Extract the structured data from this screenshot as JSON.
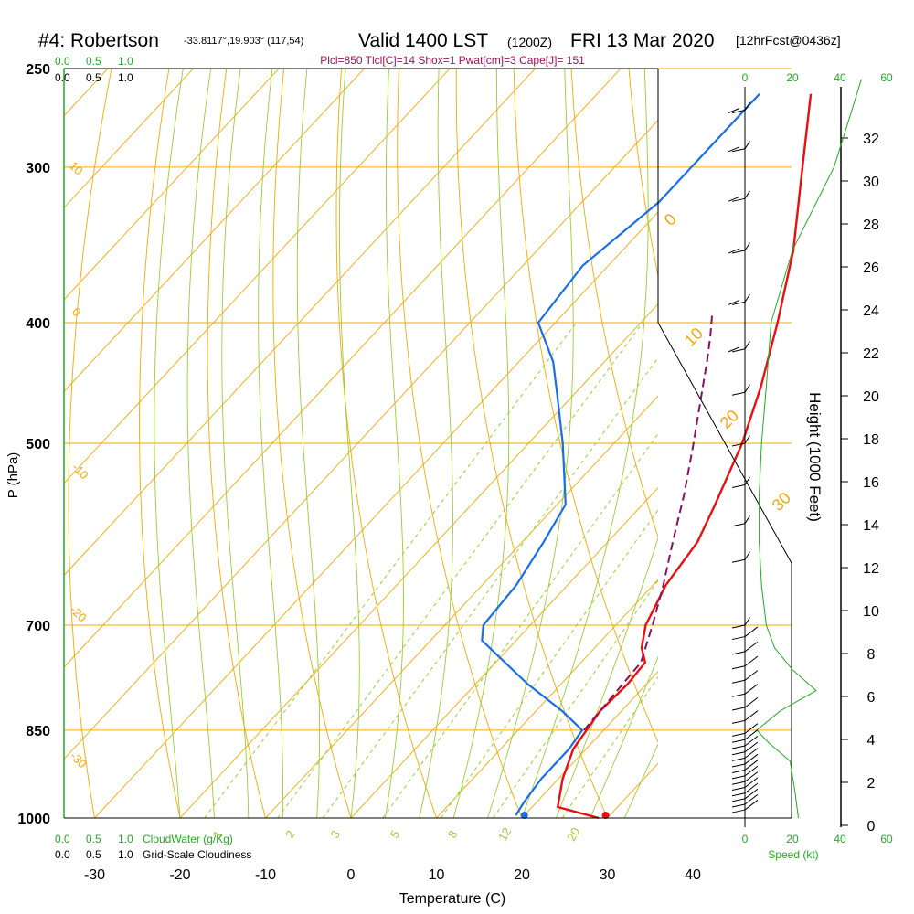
{
  "header": {
    "station": "#4: Robertson",
    "coords": "-33.8117°,19.903° (117,54)",
    "valid": "Valid 1400 LST",
    "zulu": "(1200Z)",
    "date": "FRI 13 Mar 2020",
    "forecast": "[12hrFcst@0436z]",
    "indices": "Plcl=850 Tlcl[C]=14 Shox=1 Pwat[cm]=3 Cape[J]= 151"
  },
  "colors": {
    "isotherm": "#f5a800",
    "mixratio": "#9acd32",
    "temperature": "#e81010",
    "dewpoint": "#1a6ee8",
    "parcel": "#8b1060",
    "indices": "#a0105a",
    "green_label": "#22aa22"
  },
  "chart_data": {
    "type": "line",
    "title": "#4: Robertson Valid 1400 LST (1200Z) FRI 13 Mar 2020",
    "xlabel": "Temperature (C)",
    "ylabel": "P (hPa)",
    "right_axis_label": "Height (1000 Feet)",
    "x_ticks": [
      -30,
      -20,
      -10,
      0,
      10,
      20,
      30,
      40
    ],
    "p_ticks": [
      250,
      300,
      400,
      500,
      700,
      850,
      1000
    ],
    "height_ticks": [
      0,
      2,
      4,
      6,
      8,
      10,
      12,
      14,
      16,
      18,
      20,
      22,
      24,
      26,
      28,
      30,
      32
    ],
    "skew_isotherm_labels": [
      "10",
      "0",
      "-10",
      "-20",
      "-30"
    ],
    "right_isotherm_labels": [
      "0",
      "10",
      "20",
      "30"
    ],
    "mixing_ratio_labels": [
      "1",
      "2",
      "3",
      "5",
      "8",
      "12",
      "20"
    ],
    "wind_speed_ticks": [
      "0",
      "20",
      "40",
      "60"
    ],
    "top_scales": {
      "cloud_water": [
        "0.0",
        "0.5",
        "1.0"
      ],
      "cloudiness": [
        "0.0",
        "0.5",
        "1.0"
      ]
    },
    "bottom_scales": {
      "cloud_water": [
        "0.0",
        "0.5",
        "1.0"
      ],
      "cloud_water_label": "CloudWater (g/Kg)",
      "cloudiness": [
        "0.0",
        "0.5",
        "1.0"
      ],
      "cloudiness_label": "Grid-Scale Cloudiness"
    },
    "speed_ticks": [
      "0",
      "20",
      "40",
      "60"
    ],
    "speed_label": "Speed (kt)",
    "series": [
      {
        "name": "Temperature",
        "points": [
          [
            1000,
            29.0
          ],
          [
            980,
            23.0
          ],
          [
            930,
            20.5
          ],
          [
            880,
            18.5
          ],
          [
            850,
            18.0
          ],
          [
            820,
            17.5
          ],
          [
            780,
            17.8
          ],
          [
            750,
            17.5
          ],
          [
            730,
            15.5
          ],
          [
            700,
            13.5
          ],
          [
            650,
            11.5
          ],
          [
            600,
            10.5
          ],
          [
            560,
            8.5
          ],
          [
            500,
            5.0
          ],
          [
            450,
            1.0
          ],
          [
            400,
            -4.0
          ],
          [
            350,
            -10.0
          ],
          [
            300,
            -18.0
          ],
          [
            262,
            -25.0
          ]
        ]
      },
      {
        "name": "Dewpoint",
        "points": [
          [
            995,
            19.0
          ],
          [
            970,
            18.5
          ],
          [
            930,
            18.0
          ],
          [
            880,
            18.0
          ],
          [
            850,
            17.5
          ],
          [
            820,
            13.0
          ],
          [
            780,
            6.0
          ],
          [
            720,
            -4.0
          ],
          [
            700,
            -5.5
          ],
          [
            650,
            -6.0
          ],
          [
            600,
            -7.5
          ],
          [
            560,
            -9.0
          ],
          [
            500,
            -16.0
          ],
          [
            460,
            -21.5
          ],
          [
            430,
            -26.0
          ],
          [
            400,
            -32.0
          ],
          [
            360,
            -33.0
          ],
          [
            320,
            -31.0
          ],
          [
            290,
            -31.0
          ],
          [
            262,
            -31.0
          ]
        ]
      },
      {
        "name": "Parcel",
        "points": [
          [
            850,
            17.7
          ],
          [
            750,
            17.0
          ],
          [
            700,
            14.3
          ],
          [
            650,
            11.2
          ],
          [
            600,
            7.6
          ],
          [
            550,
            3.8
          ],
          [
            500,
            -0.7
          ],
          [
            450,
            -5.8
          ],
          [
            430,
            -8.0
          ],
          [
            410,
            -10.4
          ],
          [
            395,
            -12.4
          ]
        ]
      }
    ],
    "surface_markers": {
      "temperature": 29.5,
      "dewpoint": 20.0
    },
    "wind_levels_hpa": [
      985,
      975,
      965,
      955,
      945,
      935,
      925,
      915,
      905,
      895,
      885,
      875,
      865,
      855,
      835,
      815,
      795,
      775,
      755,
      735,
      715,
      700,
      620,
      580,
      540,
      500,
      455,
      420,
      385,
      350,
      318,
      290,
      270
    ],
    "height_profile_kft": [
      0,
      2,
      4,
      6,
      8,
      10,
      12,
      14,
      16,
      18,
      20,
      22,
      24,
      26,
      28,
      30,
      32
    ]
  }
}
